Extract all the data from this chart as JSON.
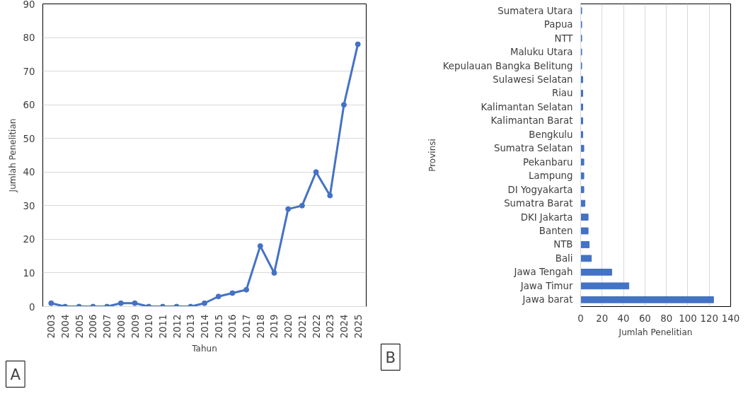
{
  "chart_data": [
    {
      "type": "line",
      "xlabel": "Tahun",
      "ylabel": "Jumlah Penelitian",
      "categories": [
        "2003",
        "2004",
        "2005",
        "2006",
        "2007",
        "2008",
        "2009",
        "2010",
        "2011",
        "2012",
        "2013",
        "2014",
        "2015",
        "2016",
        "2017",
        "2018",
        "2019",
        "2020",
        "2021",
        "2022",
        "2023",
        "2024",
        "2025"
      ],
      "series": [
        {
          "color": "#4472c4",
          "values": [
            1,
            0,
            0,
            0,
            0,
            1,
            1,
            0,
            0,
            0,
            0,
            1,
            3,
            4,
            5,
            18,
            10,
            29,
            30,
            40,
            33,
            60,
            78
          ]
        }
      ],
      "ylim": [
        0,
        90
      ],
      "yticks": [
        0,
        10,
        20,
        30,
        40,
        50,
        60,
        70,
        80,
        90
      ],
      "grid": "y",
      "marker": "circle",
      "annotations": [
        "A"
      ]
    },
    {
      "type": "bar",
      "orientation": "horizontal",
      "xlabel": "Jumlah Penelitian",
      "ylabel": "Provinsi",
      "categories": [
        "Sumatera Utara",
        "Papua",
        "NTT",
        "Maluku Utara",
        "Kepulauan Bangka Belitung",
        "Sulawesi Selatan",
        "Riau",
        "Kalimantan Selatan",
        "Kalimantan Barat",
        "Bengkulu",
        "Sumatra Selatan",
        "Pekanbaru",
        "Lampung",
        "DI Yogyakarta",
        "Sumatra Barat",
        "DKI Jakarta",
        "Banten",
        "NTB",
        "Bali",
        "Jawa Tengah",
        "Jawa Timur",
        "Jawa barat"
      ],
      "series": [
        {
          "color": "#4472c4",
          "values": [
            1,
            1,
            1,
            1,
            1,
            2,
            2,
            2,
            2,
            2,
            3,
            3,
            3,
            3,
            4,
            7,
            7,
            8,
            10,
            29,
            45,
            124
          ]
        }
      ],
      "xlim": [
        0,
        140
      ],
      "xticks": [
        0,
        20,
        40,
        60,
        80,
        100,
        120,
        140
      ],
      "grid": "x",
      "annotations": [
        "B"
      ]
    }
  ]
}
